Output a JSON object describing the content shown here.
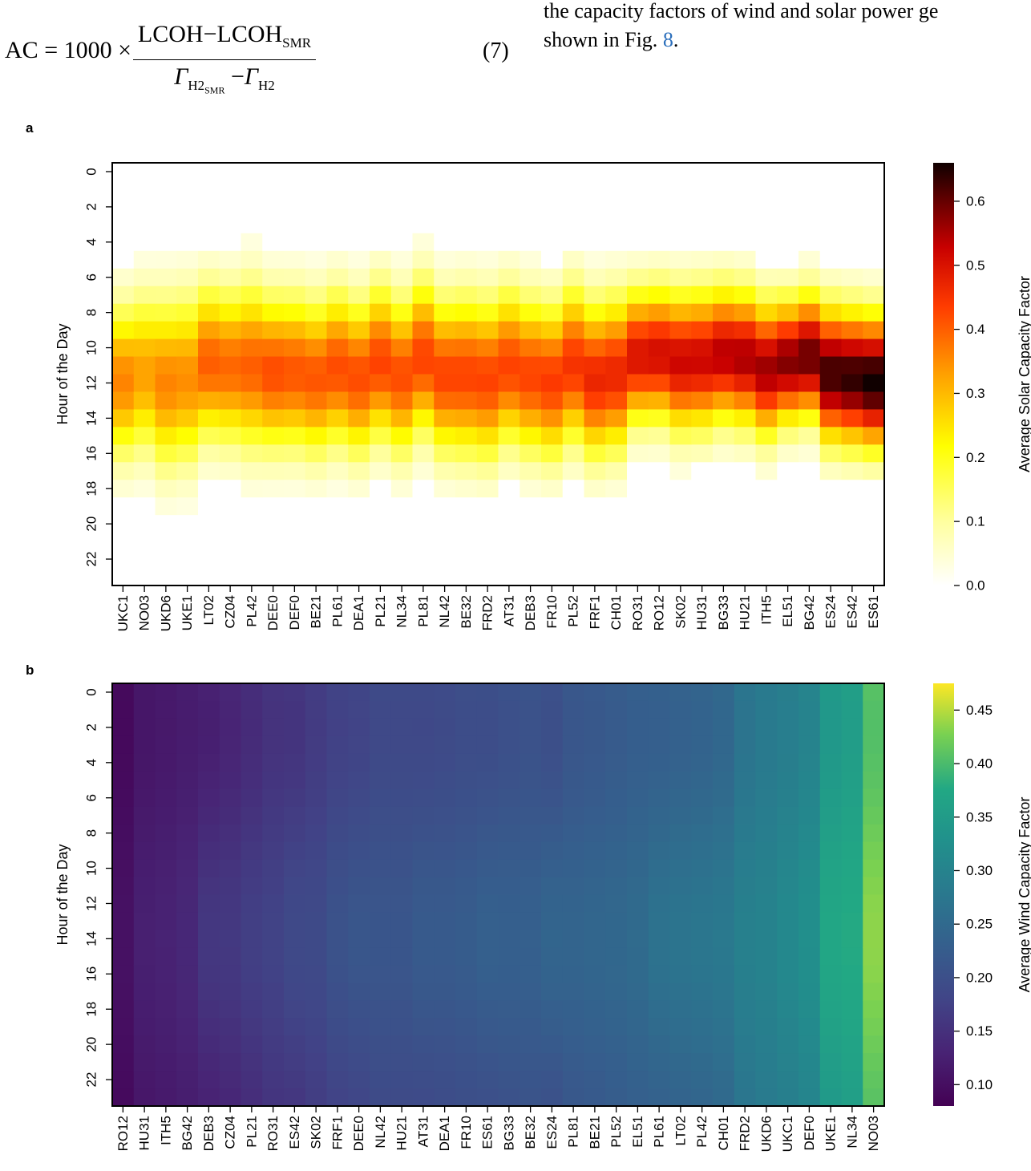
{
  "equation": {
    "lhs": "AC",
    "eq": "=",
    "factor": "1000",
    "times": "×",
    "num_a": "LCOH",
    "num_minus": "−",
    "num_b": "LCOH",
    "num_b_sub": "SMR",
    "den_a": "Γ",
    "den_a_sub": "H2",
    "den_a_subsub": "SMR",
    "den_minus": "−",
    "den_b": "Γ",
    "den_b_sub": "H2",
    "number": "(7)"
  },
  "body_text": {
    "line1": "the capacity factors of wind and solar power ge",
    "line2_pre": "shown in Fig. ",
    "line2_ref": "8",
    "line2_post": "."
  },
  "chart_data": [
    {
      "panel": "a",
      "type": "heatmap",
      "ylabel": "Hour of the Day",
      "colorbar_label": "Average Solar Capacity Factor",
      "colormap": "hot_r",
      "vmin": 0.0,
      "vmax": 0.66,
      "colorbar_ticks": [
        0.0,
        0.1,
        0.2,
        0.3,
        0.4,
        0.5,
        0.6
      ],
      "y_tick_hours": [
        0,
        2,
        4,
        6,
        8,
        10,
        12,
        14,
        16,
        18,
        20,
        22
      ],
      "regions": [
        "UKC1",
        "NO03",
        "UKD6",
        "UKE1",
        "LT02",
        "CZ04",
        "PL42",
        "DEE0",
        "DEF0",
        "BE21",
        "PL61",
        "DEA1",
        "PL21",
        "NL34",
        "PL81",
        "NL42",
        "BE32",
        "FRD2",
        "AT31",
        "DEB3",
        "FR10",
        "PL52",
        "FRF1",
        "CH01",
        "RO31",
        "RO12",
        "SK02",
        "HU31",
        "BG33",
        "HU21",
        "ITH5",
        "EL51",
        "BG42",
        "ES24",
        "ES42",
        "ES61"
      ],
      "peak": [
        0.36,
        0.33,
        0.36,
        0.35,
        0.4,
        0.39,
        0.4,
        0.42,
        0.41,
        0.41,
        0.42,
        0.42,
        0.43,
        0.42,
        0.43,
        0.43,
        0.43,
        0.43,
        0.43,
        0.43,
        0.44,
        0.45,
        0.47,
        0.47,
        0.5,
        0.51,
        0.52,
        0.52,
        0.54,
        0.55,
        0.56,
        0.58,
        0.6,
        0.63,
        0.64,
        0.66
      ],
      "half_width_hours": [
        3.0,
        3.1,
        3.3,
        3.3,
        3.0,
        3.0,
        3.2,
        3.0,
        3.0,
        3.0,
        3.0,
        3.0,
        3.0,
        3.0,
        3.0,
        3.0,
        3.1,
        3.1,
        3.0,
        3.0,
        3.0,
        3.0,
        3.0,
        3.0,
        2.6,
        2.6,
        2.7,
        2.7,
        2.6,
        2.6,
        2.6,
        2.4,
        2.4,
        2.6,
        2.6,
        2.6
      ],
      "solar_noon_hour": [
        12.4,
        12.0,
        12.5,
        12.3,
        11.4,
        11.6,
        11.6,
        11.9,
        11.9,
        12.2,
        11.7,
        12.2,
        11.4,
        12.1,
        11.1,
        12.1,
        12.1,
        12.3,
        11.6,
        12.1,
        12.4,
        11.5,
        12.3,
        12.0,
        11.0,
        10.9,
        11.3,
        11.2,
        10.9,
        11.1,
        11.7,
        11.3,
        11.0,
        12.0,
        12.2,
        12.4
      ]
    },
    {
      "panel": "b",
      "type": "heatmap",
      "ylabel": "Hour of the Day",
      "colorbar_label": "Average Wind Capacity Factor",
      "colormap": "viridis",
      "vmin": 0.08,
      "vmax": 0.475,
      "colorbar_ticks": [
        0.1,
        0.15,
        0.2,
        0.25,
        0.3,
        0.35,
        0.4,
        0.45
      ],
      "y_tick_hours": [
        0,
        2,
        4,
        6,
        8,
        10,
        12,
        14,
        16,
        18,
        20,
        22
      ],
      "regions": [
        "RO12",
        "HU31",
        "ITH5",
        "BG42",
        "DEB3",
        "CZ04",
        "PL21",
        "RO31",
        "ES42",
        "SK02",
        "FRF1",
        "DEE0",
        "NL42",
        "HU21",
        "AT31",
        "DEA1",
        "FR10",
        "ES61",
        "BG33",
        "BE32",
        "ES24",
        "PL81",
        "BE21",
        "PL52",
        "EL51",
        "PL61",
        "LT02",
        "PL42",
        "CH01",
        "FRD2",
        "UKD6",
        "UKC1",
        "DEF0",
        "UKE1",
        "NL34",
        "NO03"
      ],
      "mean": [
        0.098,
        0.118,
        0.122,
        0.128,
        0.142,
        0.147,
        0.157,
        0.165,
        0.172,
        0.178,
        0.19,
        0.196,
        0.2,
        0.2,
        0.204,
        0.206,
        0.21,
        0.214,
        0.216,
        0.218,
        0.22,
        0.226,
        0.23,
        0.234,
        0.24,
        0.248,
        0.252,
        0.256,
        0.262,
        0.282,
        0.29,
        0.3,
        0.312,
        0.358,
        0.366,
        0.42
      ],
      "diurnal_amplitude": [
        0.01,
        0.012,
        0.012,
        0.014,
        0.03,
        0.025,
        0.025,
        0.02,
        0.028,
        0.02,
        0.025,
        0.028,
        0.02,
        0.02,
        0.028,
        0.025,
        0.025,
        0.03,
        0.025,
        0.022,
        0.035,
        0.022,
        0.022,
        0.02,
        0.02,
        0.03,
        0.03,
        0.03,
        0.028,
        0.02,
        0.015,
        0.018,
        0.02,
        0.025,
        0.02,
        0.025
      ]
    }
  ]
}
